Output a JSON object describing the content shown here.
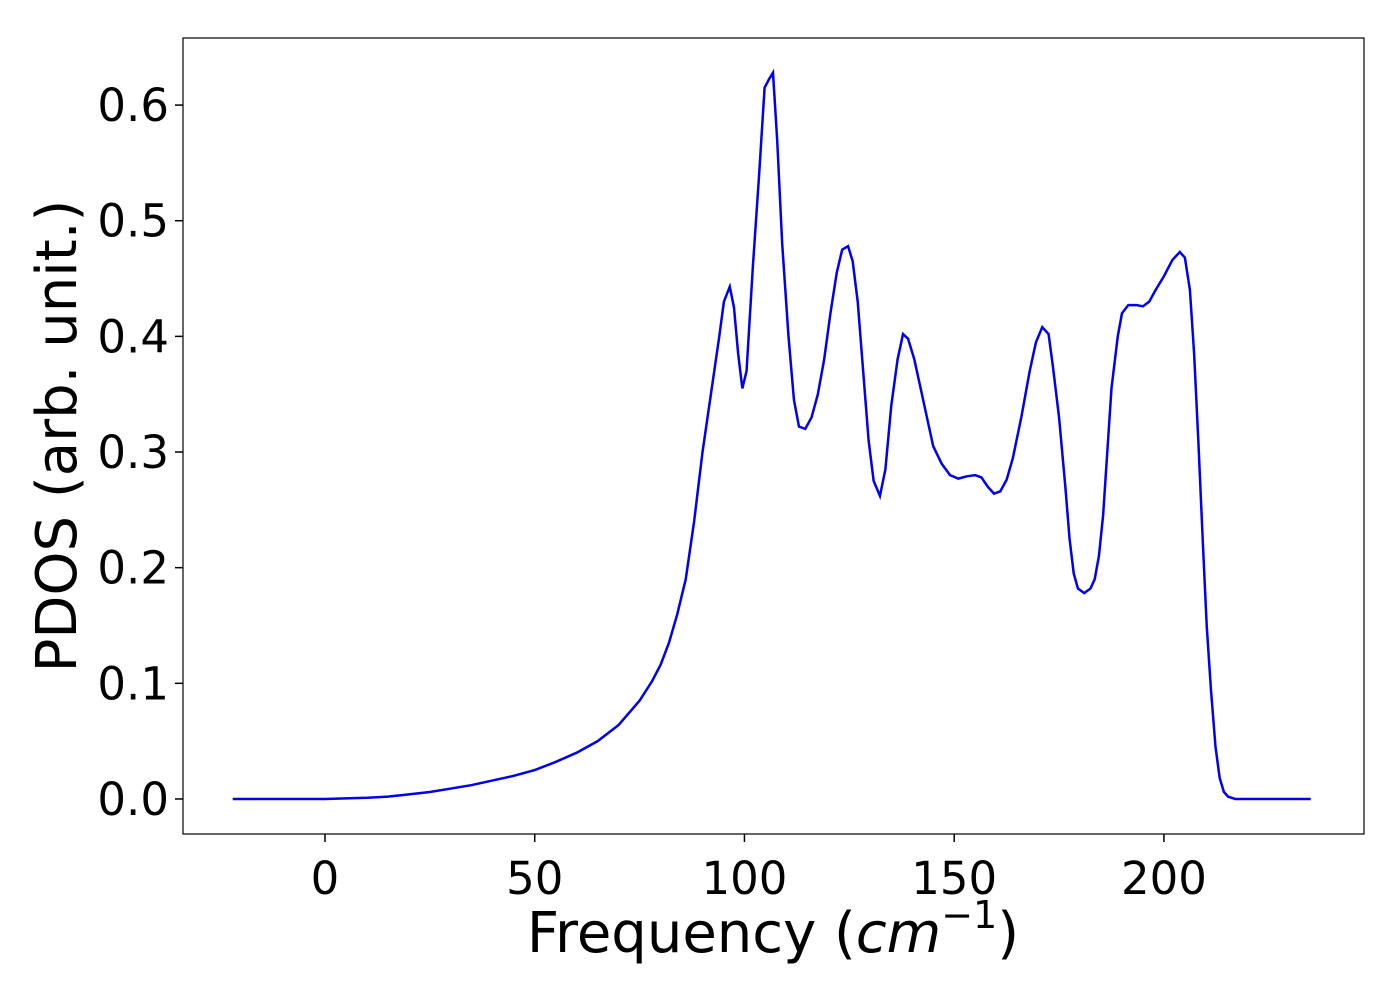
{
  "chart_data": {
    "type": "line",
    "xlabel": [
      "Frequency (",
      "cm",
      "−1",
      ")"
    ],
    "ylabel": "PDOS (arb. unit.)",
    "xlim": [
      -33.85,
      247.7
    ],
    "ylim": [
      -0.0303,
      0.658
    ],
    "xticks": [
      0,
      50,
      100,
      150,
      200
    ],
    "yticks": [
      {
        "value": 0,
        "label": "0.0"
      },
      0.1,
      0.2,
      0.3,
      0.4,
      0.5,
      0.6
    ],
    "x": [
      -22,
      0,
      5,
      10,
      15,
      20,
      25,
      30,
      35,
      40,
      45,
      50,
      55,
      60,
      65,
      70,
      75,
      78,
      80,
      82,
      84,
      86,
      88,
      90,
      92,
      94,
      95.1,
      96.5,
      97.5,
      98.5,
      99.5,
      100.5,
      102,
      103.5,
      104.8,
      105.8,
      106.8,
      107.8,
      109,
      110.5,
      111.8,
      113,
      114.5,
      116,
      117.5,
      119,
      120.5,
      122,
      123.3,
      124.7,
      125.8,
      127,
      128.3,
      129.6,
      130.8,
      132.3,
      133.6,
      135,
      136.5,
      137.8,
      139,
      140.5,
      142,
      145,
      147,
      149,
      151,
      153,
      155,
      156.5,
      158,
      159.5,
      161,
      162.5,
      164,
      166,
      168,
      169.5,
      171,
      172.5,
      173.5,
      175,
      176.5,
      177.5,
      178.5,
      179.5,
      181,
      182.5,
      183.5,
      184.5,
      185.5,
      186.5,
      187.5,
      189,
      190,
      191.5,
      193.5,
      195,
      196.5,
      198,
      200,
      202,
      203.8,
      205,
      206.2,
      207.2,
      208.2,
      209.3,
      210.2,
      211.2,
      212.3,
      213.3,
      214.3,
      215.3,
      217,
      235
    ],
    "series": [
      {
        "color": "#0000ee",
        "values": [
          0,
          0,
          0.0005,
          0.001,
          0.002,
          0.004,
          0.006,
          0.009,
          0.012,
          0.016,
          0.02,
          0.025,
          0.032,
          0.04,
          0.05,
          0.064,
          0.085,
          0.102,
          0.116,
          0.135,
          0.16,
          0.19,
          0.24,
          0.3,
          0.35,
          0.4,
          0.43,
          0.443,
          0.425,
          0.385,
          0.355,
          0.37,
          0.46,
          0.54,
          0.615,
          0.622,
          0.628,
          0.57,
          0.48,
          0.4,
          0.345,
          0.322,
          0.32,
          0.33,
          0.35,
          0.38,
          0.42,
          0.455,
          0.475,
          0.478,
          0.465,
          0.43,
          0.37,
          0.31,
          0.275,
          0.262,
          0.285,
          0.34,
          0.38,
          0.402,
          0.398,
          0.38,
          0.355,
          0.305,
          0.29,
          0.28,
          0.277,
          0.279,
          0.28,
          0.278,
          0.27,
          0.264,
          0.266,
          0.276,
          0.295,
          0.33,
          0.37,
          0.395,
          0.408,
          0.402,
          0.375,
          0.33,
          0.27,
          0.225,
          0.195,
          0.182,
          0.178,
          0.182,
          0.19,
          0.21,
          0.245,
          0.3,
          0.355,
          0.4,
          0.42,
          0.427,
          0.427,
          0.426,
          0.43,
          0.44,
          0.452,
          0.466,
          0.473,
          0.468,
          0.44,
          0.385,
          0.31,
          0.22,
          0.15,
          0.095,
          0.045,
          0.018,
          0.006,
          0.002,
          0,
          0
        ]
      }
    ]
  }
}
